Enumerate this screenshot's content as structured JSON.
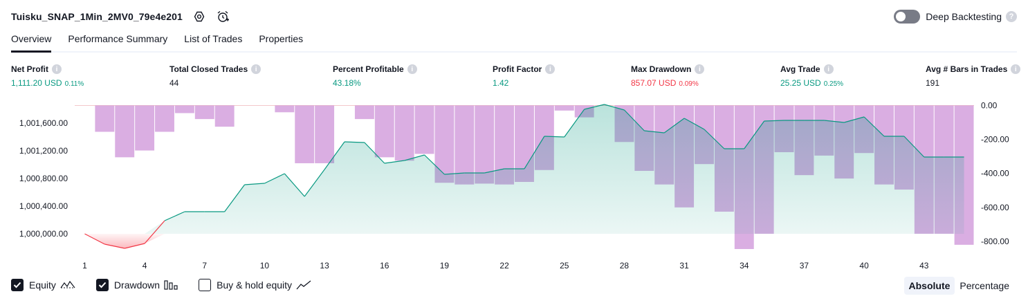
{
  "header": {
    "title": "Tuisku_SNAP_1Min_2MV0_79e4e201",
    "settings_icon": "gear-icon",
    "alert_icon": "alarm-clock-add-icon",
    "deep_backtesting_label": "Deep Backtesting",
    "deep_backtesting_on": false,
    "help_glyph": "?"
  },
  "tabs": [
    {
      "label": "Overview",
      "active": true
    },
    {
      "label": "Performance Summary",
      "active": false
    },
    {
      "label": "List of Trades",
      "active": false
    },
    {
      "label": "Properties",
      "active": false
    }
  ],
  "metrics": [
    {
      "label": "Net Profit",
      "value": "1,111.20 USD",
      "pct": "0.11%",
      "tone": "pos"
    },
    {
      "label": "Total Closed Trades",
      "value": "44",
      "pct": "",
      "tone": "neu"
    },
    {
      "label": "Percent Profitable",
      "value": "43.18%",
      "pct": "",
      "tone": "pos"
    },
    {
      "label": "Profit Factor",
      "value": "1.42",
      "pct": "",
      "tone": "pos"
    },
    {
      "label": "Max Drawdown",
      "value": "857.07 USD",
      "pct": "0.09%",
      "tone": "neg"
    },
    {
      "label": "Avg Trade",
      "value": "25.25 USD",
      "pct": "0.25%",
      "tone": "pos"
    },
    {
      "label": "Avg # Bars in Trades",
      "value": "191",
      "pct": "",
      "tone": "neu"
    }
  ],
  "info_glyph": "i",
  "chart_data": {
    "type": "line",
    "x_ticks": [
      1,
      4,
      7,
      10,
      13,
      16,
      19,
      22,
      25,
      28,
      31,
      34,
      37,
      40,
      43
    ],
    "left_axis": {
      "ticks": [
        1000000,
        1000400,
        1000800,
        1001200,
        1001600
      ],
      "tick_labels": [
        "1,000,000.00",
        "1,000,400.00",
        "1,000,800.00",
        "1,001,200.00",
        "1,001,600.00"
      ],
      "ylim": [
        999780,
        1001880
      ]
    },
    "right_axis": {
      "ticks": [
        0,
        -200,
        -400,
        -600,
        -800
      ],
      "tick_labels": [
        "0.00",
        "-200.00",
        "-400.00",
        "-600.00",
        "-800.00"
      ],
      "ylim": [
        -845,
        10
      ]
    },
    "series": [
      {
        "name": "Equity",
        "color": "#089981",
        "negative_color": "#f23645",
        "x": [
          1,
          2,
          3,
          4,
          5,
          6,
          7,
          8,
          9,
          10,
          11,
          12,
          13,
          14,
          15,
          16,
          17,
          18,
          19,
          20,
          21,
          22,
          23,
          24,
          25,
          26,
          27,
          28,
          29,
          30,
          31,
          32,
          33,
          34,
          35,
          36,
          37,
          38,
          39,
          40,
          41,
          42,
          43,
          44,
          45
        ],
        "values": [
          1000000,
          999850,
          999790,
          999860,
          1000190,
          1000320,
          1000320,
          1000320,
          1000710,
          1000730,
          1000870,
          1000540,
          1000930,
          1001330,
          1001320,
          1001020,
          1001060,
          1001140,
          1000860,
          1000880,
          1000880,
          1000940,
          1000940,
          1001410,
          1001400,
          1001800,
          1001870,
          1001790,
          1001490,
          1001460,
          1001670,
          1001510,
          1001230,
          1001230,
          1001630,
          1001640,
          1001640,
          1001640,
          1001610,
          1001690,
          1001410,
          1001410,
          1001110,
          1001110,
          1001110
        ]
      },
      {
        "name": "Drawdown",
        "color": "#ce93d8",
        "x": [
          1,
          2,
          3,
          4,
          5,
          6,
          7,
          8,
          9,
          10,
          11,
          12,
          13,
          14,
          15,
          16,
          17,
          18,
          19,
          20,
          21,
          22,
          23,
          24,
          25,
          26,
          27,
          28,
          29,
          30,
          31,
          32,
          33,
          34,
          35,
          36,
          37,
          38,
          39,
          40,
          41,
          42,
          43,
          44,
          45
        ],
        "values": [
          0,
          -155,
          -305,
          -265,
          -155,
          -45,
          -80,
          -125,
          0,
          0,
          -40,
          -340,
          -340,
          0,
          -80,
          -305,
          -325,
          -285,
          -455,
          -465,
          -460,
          -465,
          -450,
          -380,
          -30,
          -70,
          0,
          -215,
          -385,
          -465,
          -600,
          -345,
          -625,
          -845,
          -755,
          -275,
          -410,
          -295,
          -430,
          -280,
          -465,
          -495,
          -755,
          -755,
          -820
        ]
      }
    ]
  },
  "legend": [
    {
      "label": "Equity",
      "checked": true,
      "icon": "equity-line-icon"
    },
    {
      "label": "Drawdown",
      "checked": true,
      "icon": "drawdown-bars-icon"
    },
    {
      "label": "Buy & hold equity",
      "checked": false,
      "icon": "buy-hold-line-icon"
    }
  ],
  "display_mode": {
    "options": [
      "Absolute",
      "Percentage"
    ],
    "selected": "Absolute"
  }
}
